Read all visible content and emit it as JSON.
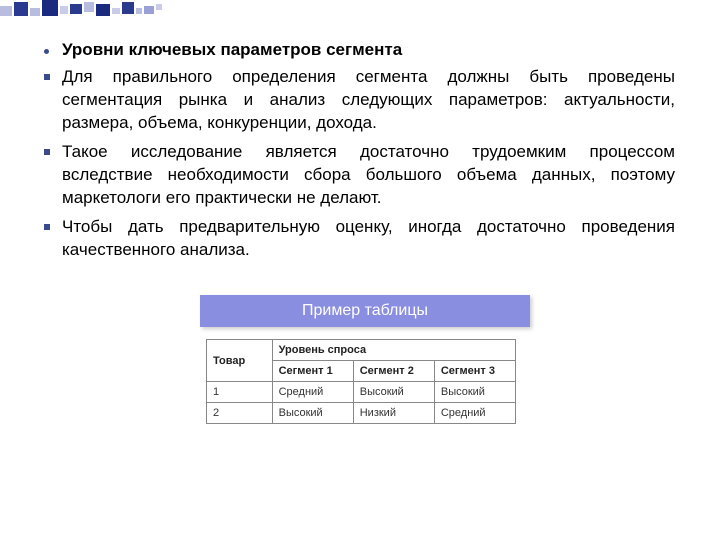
{
  "decoration": {
    "blocks": [
      {
        "w": 12,
        "h": 10,
        "color": "#b8bde0",
        "mt": 6
      },
      {
        "w": 14,
        "h": 14,
        "color": "#2a3b8f",
        "mt": 2
      },
      {
        "w": 10,
        "h": 8,
        "color": "#b8bde0",
        "mt": 8
      },
      {
        "w": 16,
        "h": 16,
        "color": "#1a2a7f",
        "mt": 0
      },
      {
        "w": 8,
        "h": 8,
        "color": "#c8cce8",
        "mt": 6
      },
      {
        "w": 12,
        "h": 10,
        "color": "#2a3b8f",
        "mt": 4
      },
      {
        "w": 10,
        "h": 10,
        "color": "#b8bde0",
        "mt": 2
      },
      {
        "w": 14,
        "h": 12,
        "color": "#1a2a7f",
        "mt": 4
      },
      {
        "w": 8,
        "h": 6,
        "color": "#c8cce8",
        "mt": 8
      },
      {
        "w": 12,
        "h": 12,
        "color": "#2a3b8f",
        "mt": 2
      },
      {
        "w": 6,
        "h": 6,
        "color": "#b8bde0",
        "mt": 8
      },
      {
        "w": 10,
        "h": 8,
        "color": "#9aa0d8",
        "mt": 6
      },
      {
        "w": 6,
        "h": 6,
        "color": "#c8cce8",
        "mt": 4
      }
    ]
  },
  "bullets": {
    "title": "Уровни ключевых параметров сегмента",
    "items": [
      "Для правильного определения сегмента должны быть проведены сегментация рынка и анализ следующих параметров: актуальности, размера, объема, конкуренции, дохода.",
      "Такое исследование является достаточно трудоемким процессом вследствие необходимости сбора большого объема данных, поэтому маркетологи его практически не делают.",
      "Чтобы дать предварительную оценку, иногда достаточно проведения качественного анализа."
    ]
  },
  "table": {
    "type": "table",
    "banner_label": "Пример таблицы",
    "banner_bg": "#8a8ee0",
    "banner_color": "#ffffff",
    "border_color": "#888888",
    "header_product": "Товар",
    "header_demand": "Уровень спроса",
    "segments": [
      "Сегмент 1",
      "Сегмент 2",
      "Сегмент 3"
    ],
    "rows": [
      {
        "product": "1",
        "cells": [
          "Средний",
          "Высокий",
          "Высокий"
        ]
      },
      {
        "product": "2",
        "cells": [
          "Высокий",
          "Низкий",
          "Средний"
        ]
      }
    ]
  }
}
